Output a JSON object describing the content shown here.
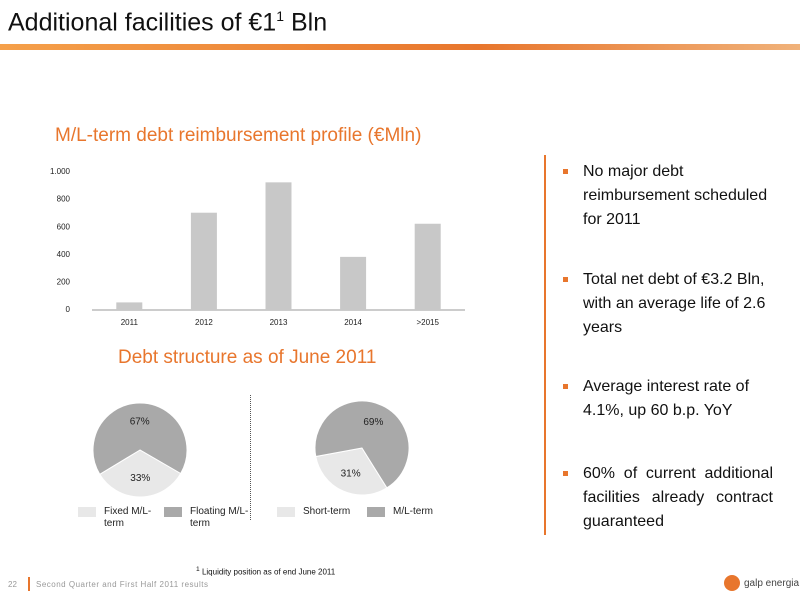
{
  "header": {
    "title": "Additional facilities of €1",
    "title_sup": "1",
    "title_tail": "Bln"
  },
  "chart_data": [
    {
      "type": "bar",
      "title": "M/L-term debt reimbursement profile (€Mln)",
      "categories": [
        "2011",
        "2012",
        "2013",
        "2014",
        ">2015"
      ],
      "values": [
        55,
        705,
        925,
        385,
        625
      ],
      "color": "#c8c8c8",
      "ylim": [
        0,
        1000
      ],
      "yticks": [
        0,
        200,
        400,
        600,
        800,
        {
          "value": 1000,
          "label": "1.000"
        }
      ]
    },
    {
      "type": "pie",
      "title": "Debt structure as of June 2011",
      "categories": [
        "Fixed M/L-term",
        "Floating M/L-term"
      ],
      "values": [
        33,
        67
      ],
      "value_labels": [
        "33%",
        "67%"
      ],
      "colors": [
        "#e8e8e8",
        "#a9a9a9"
      ]
    },
    {
      "type": "pie",
      "categories": [
        "Short-term",
        "M/L-term"
      ],
      "values": [
        31,
        69
      ],
      "value_labels": [
        "31%",
        "69%"
      ],
      "colors": [
        "#e8e8e8",
        "#a9a9a9"
      ]
    }
  ],
  "bullets": [
    "No major debt reimbursement scheduled for 2011",
    "Total net debt of €3.2 Bln, with an average life of 2.6 years",
    "Average interest rate of 4.1%, up 60 b.p. YoY",
    "60% of current additional facilities already contract guaranteed"
  ],
  "footnote": {
    "sup": "1",
    "text": "Liquidity position as of end June 2011"
  },
  "footer": {
    "page": "22",
    "text": "Second Quarter and First Half 2011 results",
    "logo": "galp energia"
  }
}
